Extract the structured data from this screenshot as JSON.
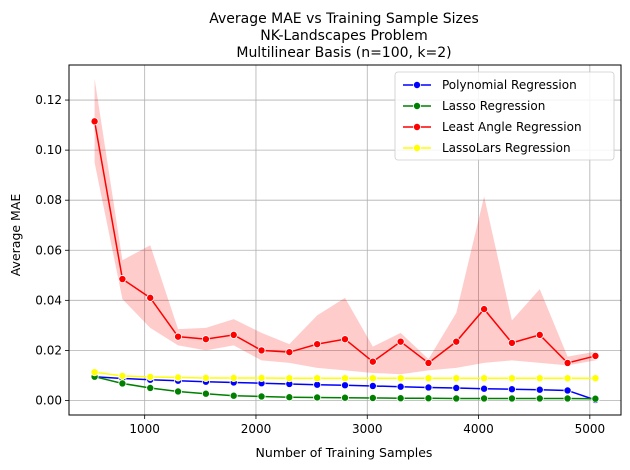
{
  "chart_data": {
    "type": "line",
    "title_lines": [
      "Average MAE vs Training Sample Sizes",
      "NK-Landscapes Problem",
      "Multilinear Basis (n=100, k=2)"
    ],
    "xlabel": "Number of Training Samples",
    "ylabel": "Average MAE",
    "xlim": [
      320,
      5280
    ],
    "ylim": [
      -0.0058,
      0.134
    ],
    "xticks": [
      1000,
      2000,
      3000,
      4000,
      5000
    ],
    "yticks": [
      0.0,
      0.02,
      0.04,
      0.06,
      0.08,
      0.1,
      0.12
    ],
    "xtick_labels": [
      "1000",
      "2000",
      "3000",
      "4000",
      "5000"
    ],
    "ytick_labels": [
      "0.00",
      "0.02",
      "0.04",
      "0.06",
      "0.08",
      "0.10",
      "0.12"
    ],
    "grid": true,
    "legend_position": "top-right",
    "x": [
      550,
      800,
      1050,
      1300,
      1550,
      1800,
      2050,
      2300,
      2550,
      2800,
      3050,
      3300,
      3550,
      3800,
      4050,
      4300,
      4550,
      4800,
      5050
    ],
    "series": [
      {
        "name": "Polynomial Regression",
        "color": "#0000ff",
        "values": [
          0.0095,
          0.0088,
          0.0083,
          0.0079,
          0.0075,
          0.0072,
          0.0069,
          0.0066,
          0.0063,
          0.0061,
          0.0058,
          0.0055,
          0.0052,
          0.005,
          0.0047,
          0.0045,
          0.0043,
          0.004,
          0.0002
        ]
      },
      {
        "name": "Lasso Regression",
        "color": "#008000",
        "values": [
          0.0095,
          0.0068,
          0.005,
          0.0036,
          0.0027,
          0.0019,
          0.0016,
          0.0013,
          0.0012,
          0.0011,
          0.001,
          0.0009,
          0.0009,
          0.0008,
          0.0008,
          0.0008,
          0.0008,
          0.0008,
          0.0007
        ]
      },
      {
        "name": "Least Angle Regression",
        "color": "#ff0000",
        "band_color": "#ff0000",
        "values": [
          0.1115,
          0.0485,
          0.041,
          0.0255,
          0.0245,
          0.0262,
          0.02,
          0.0193,
          0.0225,
          0.0245,
          0.0155,
          0.0235,
          0.015,
          0.0235,
          0.0365,
          0.023,
          0.0262,
          0.015,
          0.0178
        ],
        "band_lower": [
          0.095,
          0.0405,
          0.029,
          0.022,
          0.02,
          0.022,
          0.016,
          0.015,
          0.013,
          0.012,
          0.011,
          0.0105,
          0.012,
          0.013,
          0.015,
          0.016,
          0.015,
          0.014,
          0.016
        ],
        "band_upper": [
          0.1285,
          0.056,
          0.062,
          0.0285,
          0.029,
          0.0325,
          0.027,
          0.0225,
          0.034,
          0.041,
          0.0215,
          0.027,
          0.0165,
          0.035,
          0.0815,
          0.032,
          0.0445,
          0.0175,
          0.0195
        ]
      },
      {
        "name": "LassoLars Regression",
        "color": "#ffff00",
        "values": [
          0.0113,
          0.0098,
          0.0094,
          0.0092,
          0.009,
          0.009,
          0.009,
          0.0089,
          0.0089,
          0.0089,
          0.0089,
          0.0089,
          0.0089,
          0.0089,
          0.0089,
          0.0089,
          0.0089,
          0.0089,
          0.0089
        ]
      }
    ]
  }
}
